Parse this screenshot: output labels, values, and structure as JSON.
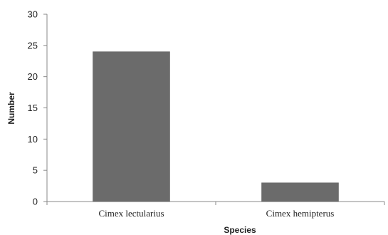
{
  "chart_data": {
    "type": "bar",
    "title": "",
    "xlabel": "Species",
    "ylabel": "Number",
    "categories": [
      "Cimex lectularius",
      "Cimex hemipterus"
    ],
    "values": [
      24,
      3
    ],
    "ylim": [
      0,
      30
    ],
    "yticks": [
      0,
      5,
      10,
      15,
      20,
      25,
      30
    ],
    "grid": false,
    "legend": "none",
    "colors": {
      "bar": "#6b6b6b",
      "axis": "#888888",
      "text": "#222222"
    }
  }
}
